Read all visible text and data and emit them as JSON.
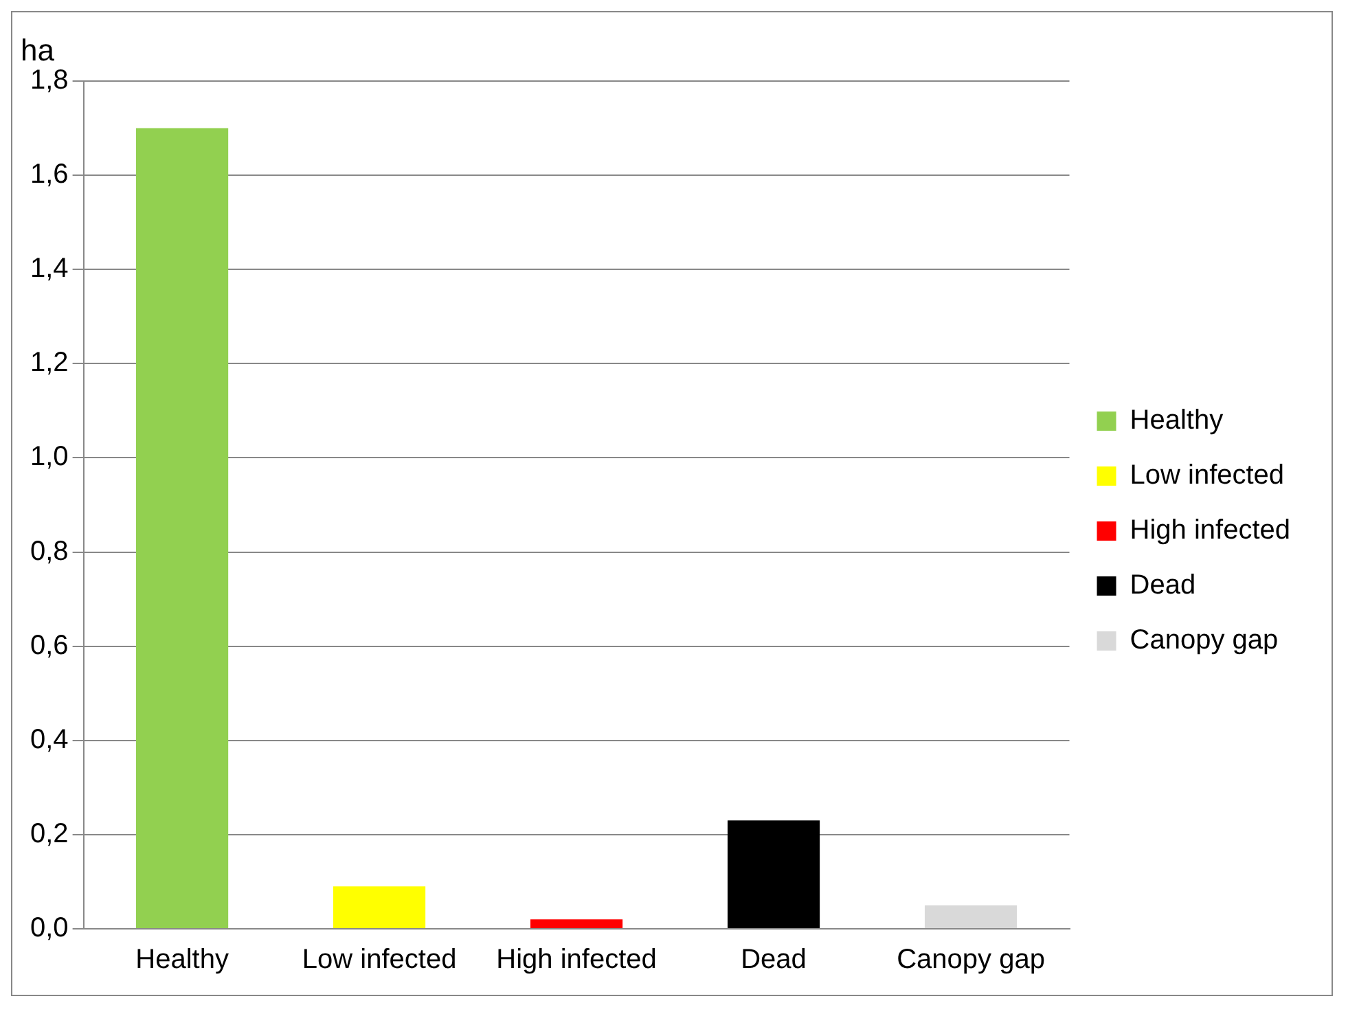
{
  "chart_data": {
    "type": "bar",
    "ylabel": "ha",
    "categories": [
      "Healthy",
      "Low infected",
      "High infected",
      "Dead",
      "Canopy gap"
    ],
    "series": [
      {
        "name": "Healthy",
        "color": "#92d050",
        "values": [
          1.7,
          null,
          null,
          null,
          null
        ]
      },
      {
        "name": "Low infected",
        "color": "#ffff00",
        "values": [
          null,
          0.09,
          null,
          null,
          null
        ]
      },
      {
        "name": "High infected",
        "color": "#ff0000",
        "values": [
          null,
          null,
          0.02,
          null,
          null
        ]
      },
      {
        "name": "Dead",
        "color": "#000000",
        "values": [
          null,
          null,
          null,
          0.23,
          null
        ]
      },
      {
        "name": "Canopy gap",
        "color": "#d9d9d9",
        "values": [
          null,
          null,
          null,
          null,
          0.05
        ]
      }
    ],
    "ylim": [
      0,
      1.8
    ],
    "yticks": [
      {
        "value": 0,
        "label": "0,0"
      },
      {
        "value": 0.2,
        "label": "0,2"
      },
      {
        "value": 0.4,
        "label": "0,4"
      },
      {
        "value": 0.6,
        "label": "0,6"
      },
      {
        "value": 0.8,
        "label": "0,8"
      },
      {
        "value": 1,
        "label": "1,0"
      },
      {
        "value": 1.2,
        "label": "1,2"
      },
      {
        "value": 1.4,
        "label": "1,4"
      },
      {
        "value": 1.6,
        "label": "1,6"
      },
      {
        "value": 1.8,
        "label": "1,8"
      }
    ],
    "grid": "y",
    "legend": "right"
  }
}
